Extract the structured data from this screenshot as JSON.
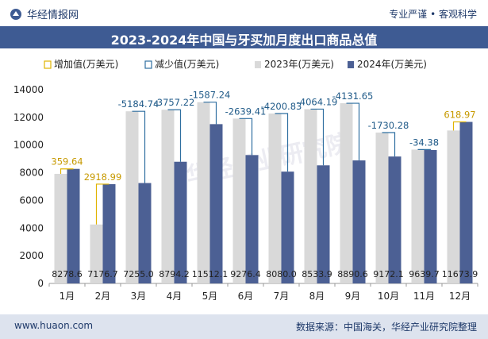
{
  "header": {
    "brand": "华经情报网",
    "tags": "专业严谨 • 客观科学"
  },
  "footer": {
    "site": "www.huaon.com",
    "source": "数据来源：中国海关，华经产业研究院整理"
  },
  "watermark": "华经产业研究院",
  "colors": {
    "bar2023": "#d9d9d9",
    "bar2024": "#4c6094",
    "increase": "#e0b300",
    "decrease": "#2f6fa0",
    "titleBar": "#3e5b93"
  },
  "chart_data": {
    "type": "bar",
    "title": "2023-2024年中国与牙买加月度出口商品总值",
    "legend": [
      "增加值(万美元)",
      "减少值(万美元)",
      "2023年(万美元)",
      "2024年(万美元)"
    ],
    "legend_position": "top",
    "categories": [
      "1月",
      "2月",
      "3月",
      "4月",
      "5月",
      "6月",
      "7月",
      "8月",
      "9月",
      "10月",
      "11月",
      "12月"
    ],
    "series": [
      {
        "name": "2023年(万美元)",
        "values": [
          7918.96,
          4257.72,
          12439.74,
          12551.42,
          13099.34,
          11915.81,
          12280.83,
          12598.09,
          13022.25,
          10902.38,
          9674.08,
          11054.93
        ]
      },
      {
        "name": "2024年(万美元)",
        "values": [
          8278.6,
          7176.7,
          7255.0,
          8794.2,
          11512.1,
          9276.4,
          8080.0,
          8533.9,
          8890.6,
          9172.1,
          9639.7,
          11673.9
        ]
      }
    ],
    "change_labels": [
      "359.64",
      "2918.99",
      "-5184.74",
      "-3757.22",
      "-1587.24",
      "-2639.41",
      "-4200.83",
      "-4064.19",
      "-4131.65",
      "-1730.28",
      "-34.38",
      "618.97"
    ],
    "data_labels_2024": [
      "8278.6",
      "7176.7",
      "7255.0",
      "8794.2",
      "11512.1",
      "9276.4",
      "8080.0",
      "8533.9",
      "8890.6",
      "9172.1",
      "9639.7",
      "11673.9"
    ],
    "yticks": [
      "0",
      "2000",
      "4000",
      "6000",
      "8000",
      "10000",
      "12000",
      "14000"
    ],
    "ylim": [
      0,
      14000
    ],
    "grid": false
  }
}
